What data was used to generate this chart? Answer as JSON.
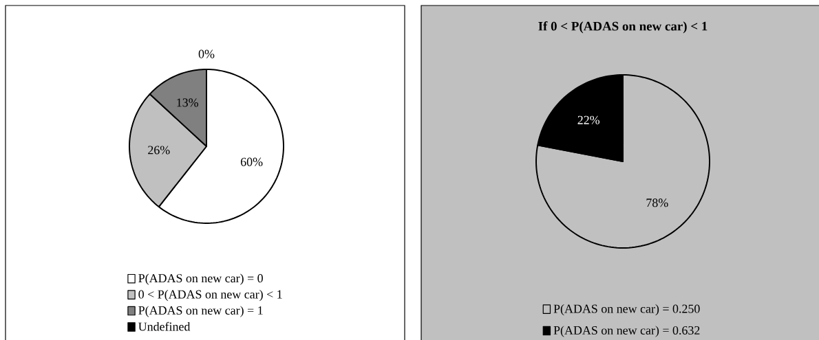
{
  "chart_data": [
    {
      "type": "pie",
      "categories": [
        "P(ADAS on new car) = 0",
        "0 < P(ADAS on new car) < 1",
        "P(ADAS on new car) = 1",
        "Undefined"
      ],
      "values": [
        60,
        26,
        13,
        0
      ],
      "colors": [
        "#ffffff",
        "#c0c0c0",
        "#808080",
        "#000000"
      ],
      "value_labels": [
        "60%",
        "26%",
        "13%",
        "0%"
      ],
      "legend": "bottom"
    },
    {
      "type": "pie",
      "title": "If 0 < P(ADAS on new car) < 1",
      "categories": [
        "P(ADAS on new car) = 0.250",
        "P(ADAS on new car) = 0.632"
      ],
      "values": [
        78,
        22
      ],
      "colors": [
        "#c0c0c0",
        "#000000"
      ],
      "value_labels": [
        "78%",
        "22%"
      ],
      "legend": "bottom"
    }
  ]
}
